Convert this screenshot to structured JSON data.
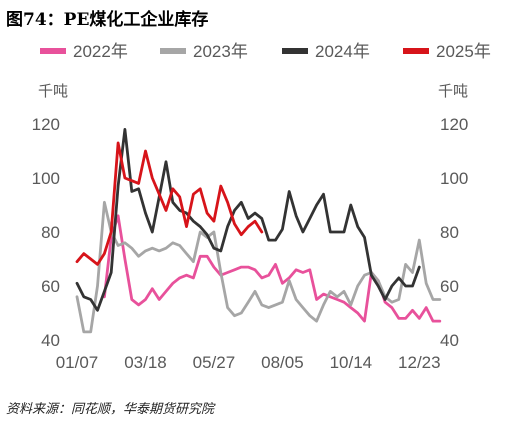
{
  "title": "图74：PE煤化工企业库存",
  "source": "资料来源：同花顺，华泰期货研究院",
  "chart_data": {
    "type": "line",
    "title": "图74：PE煤化工企业库存",
    "ylabel_left": "千吨",
    "ylabel_right": "千吨",
    "ylim": [
      40,
      120
    ],
    "yticks": [
      40,
      60,
      80,
      100,
      120
    ],
    "xlim": [
      1,
      53
    ],
    "xtick_labels": [
      "01/07",
      "03/18",
      "05/27",
      "08/05",
      "10/14",
      "12/23"
    ],
    "xtick_weeks": [
      1,
      11,
      21,
      31,
      41,
      51
    ],
    "grid": false,
    "legend_position": "top",
    "series": [
      {
        "name": "2022年",
        "color": "#e8519b",
        "values": [
          null,
          null,
          null,
          null,
          56,
          78,
          86,
          70,
          55,
          53,
          55,
          59,
          55,
          58,
          61,
          63,
          64,
          63,
          71,
          71,
          67,
          64,
          65,
          66,
          67,
          67,
          66,
          63,
          64,
          68,
          61,
          63,
          66,
          65,
          66,
          55,
          57,
          56,
          55,
          54,
          52,
          50,
          47,
          65,
          62,
          54,
          52,
          48,
          48,
          51,
          48,
          52,
          47,
          47
        ]
      },
      {
        "name": "2023年",
        "color": "#a6a6a6",
        "values": [
          56,
          43,
          43,
          60,
          91,
          80,
          75,
          76,
          74,
          71,
          73,
          74,
          73,
          74,
          76,
          75,
          72,
          69,
          80,
          78,
          80,
          65,
          52,
          49,
          50,
          54,
          58,
          53,
          52,
          53,
          54,
          62,
          55,
          52,
          49,
          47,
          53,
          58,
          56,
          58,
          53,
          60,
          64,
          65,
          62,
          56,
          54,
          55,
          68,
          65,
          77,
          61,
          55,
          55
        ]
      },
      {
        "name": "2024年",
        "color": "#333333",
        "values": [
          61,
          56,
          55,
          51,
          58,
          65,
          97,
          118,
          95,
          96,
          87,
          80,
          93,
          106,
          91,
          88,
          87,
          84,
          82,
          79,
          74,
          73,
          82,
          88,
          91,
          85,
          87,
          85,
          77,
          77,
          81,
          95,
          86,
          80,
          85,
          90,
          94,
          80,
          80,
          80,
          90,
          82,
          78,
          64,
          60,
          55,
          60,
          63,
          60,
          60,
          67,
          null,
          null,
          null
        ]
      },
      {
        "name": "2025年",
        "color": "#d7141a",
        "values": [
          69,
          72,
          70,
          68,
          72,
          80,
          113,
          100,
          99,
          98,
          110,
          100,
          94,
          88,
          96,
          93,
          82,
          94,
          96,
          87,
          84,
          97,
          91,
          83,
          79,
          82,
          84,
          80,
          null,
          null,
          null,
          null,
          null,
          null,
          null,
          null,
          null,
          null,
          null,
          null,
          null,
          null,
          null,
          null,
          null,
          null,
          null,
          null,
          null,
          null,
          null,
          null,
          null,
          null
        ]
      }
    ]
  }
}
